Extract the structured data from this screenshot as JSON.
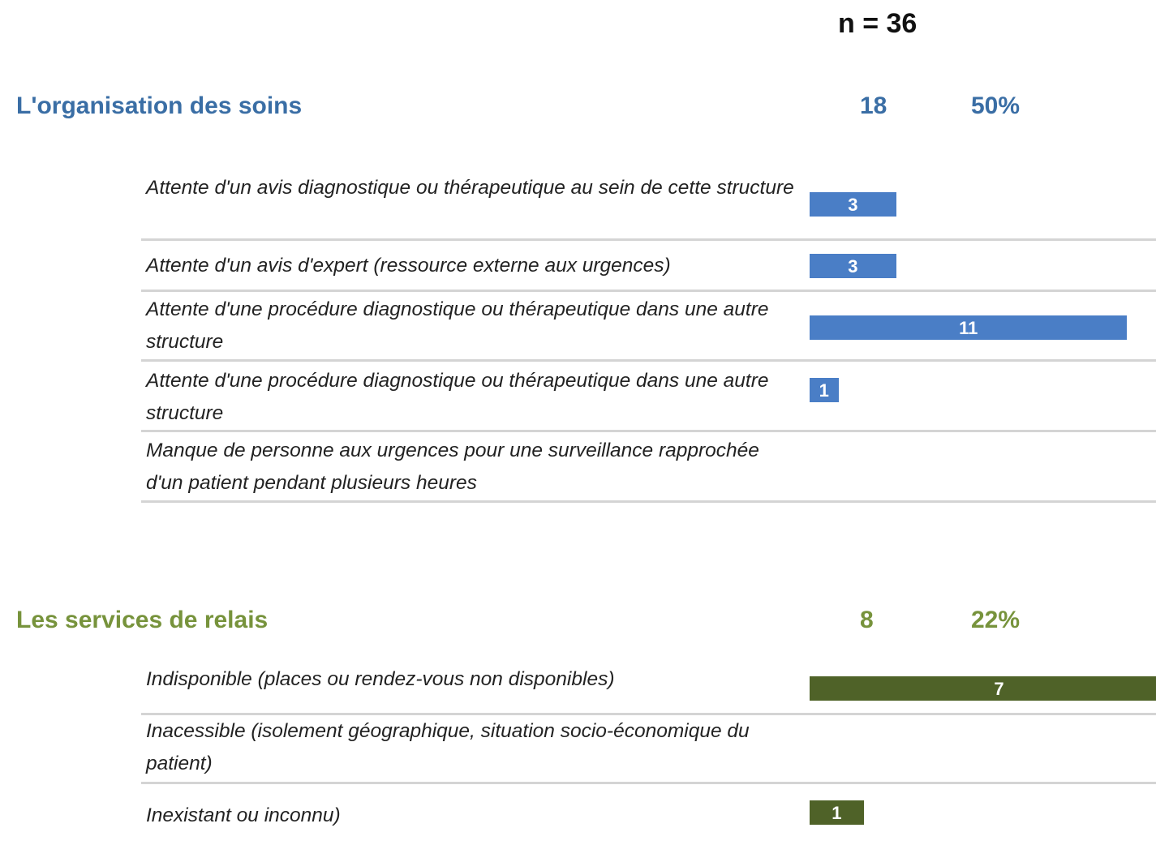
{
  "n": "n = 36",
  "sections": [
    {
      "title": "L'organisation des soins",
      "count": 18,
      "percent": {
        "value": 50,
        "label": "50%"
      },
      "color": "#3a6ea5",
      "bar_color": "#4a7ec6",
      "xlim": [
        0,
        12
      ],
      "items": [
        {
          "label": "Attente d'un avis diagnostique ou thérapeutique au sein de cette structure",
          "value": 3
        },
        {
          "label": "Attente d'un avis d'expert (ressource externe aux urgences)",
          "value": 3
        },
        {
          "label": "Attente d'une procédure diagnostique ou thérapeutique dans une autre structure",
          "value": 11
        },
        {
          "label": "Attente d'une procédure diagnostique ou thérapeutique dans une autre structure",
          "value": 1
        },
        {
          "label": "Manque de personne aux urgences pour une surveillance rapprochée d'un patient pendant plusieurs heures",
          "value": null
        }
      ]
    },
    {
      "title": "Les services de relais",
      "count": 8,
      "percent": {
        "value": 22,
        "label": "22%"
      },
      "color": "#77933c",
      "bar_color": "#4f6228",
      "xlim": [
        0,
        6.4
      ],
      "items": [
        {
          "label": "Indisponible (places ou rendez-vous non disponibles)",
          "value": 7
        },
        {
          "label": "Inacessible (isolement géographique, situation socio-économique du patient)",
          "value": null
        },
        {
          "label": "Inexistant ou inconnu)",
          "value": 1
        }
      ]
    }
  ]
}
